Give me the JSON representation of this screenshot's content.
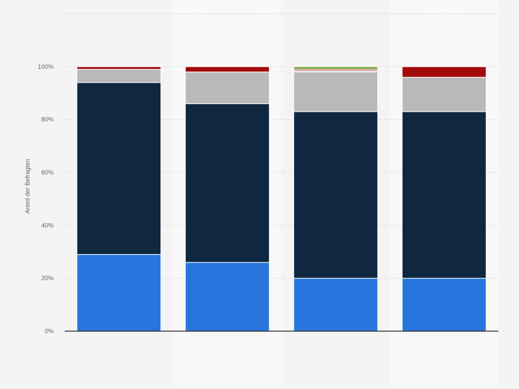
{
  "chart_data": {
    "type": "bar",
    "stacked": true,
    "categories": [
      "",
      "",
      "",
      ""
    ],
    "ylabel": "Anteil der Befragten",
    "ylim": [
      0,
      120
    ],
    "yticks": [
      0,
      20,
      40,
      60,
      80,
      100
    ],
    "ytick_labels": [
      "0%",
      "20%",
      "40%",
      "60%",
      "80%",
      "100%"
    ],
    "grid": true,
    "legend": "none",
    "series": [
      {
        "color": "#2876dd",
        "values": [
          29,
          26,
          20,
          20
        ]
      },
      {
        "color": "#0f2740",
        "values": [
          65,
          60,
          63,
          63
        ]
      },
      {
        "color": "#b9b9b9",
        "values": [
          5,
          12,
          15,
          13
        ]
      },
      {
        "color": "#c8c8c8",
        "values": [
          0,
          0,
          0.5,
          0
        ]
      },
      {
        "color": "#a30a0a",
        "values": [
          1,
          2,
          0.5,
          4
        ]
      },
      {
        "color": "#7aa23a",
        "values": [
          0,
          0,
          1,
          0
        ]
      }
    ]
  }
}
